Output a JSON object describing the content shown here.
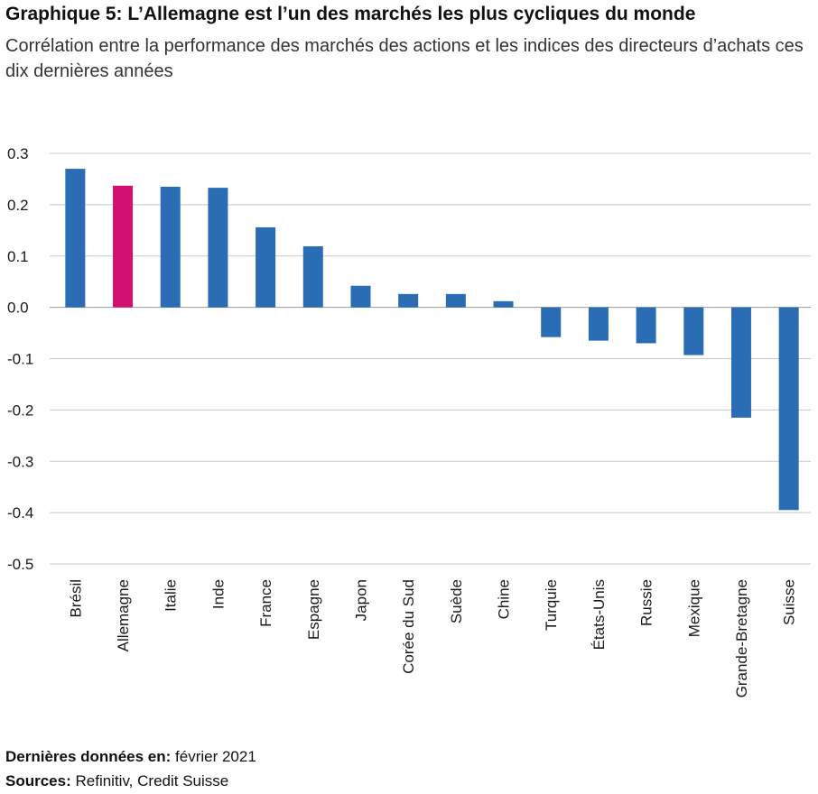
{
  "header": {
    "title": "Graphique 5: L’Allemagne est l’un des marchés les plus cycliques du monde",
    "subtitle": "Corrélation entre la performance des marchés des actions et les indices des directeurs d’achats ces dix dernières années"
  },
  "footer": {
    "last_data_label": "Dernières données en: ",
    "last_data_value": "février 2021",
    "sources_label": "Sources: ",
    "sources_value": "Refinitiv, Credit Suisse"
  },
  "chart_data": {
    "type": "bar",
    "categories": [
      "Brésil",
      "Allemagne",
      "Italie",
      "Inde",
      "France",
      "Espagne",
      "Japon",
      "Corée du Sud",
      "Suède",
      "Chine",
      "Turquie",
      "États-Unis",
      "Russie",
      "Mexique",
      "Grande-Bretagne",
      "Suisse"
    ],
    "values": [
      0.27,
      0.237,
      0.235,
      0.233,
      0.156,
      0.119,
      0.042,
      0.026,
      0.026,
      0.012,
      -0.058,
      -0.065,
      -0.07,
      -0.093,
      -0.215,
      -0.395
    ],
    "colors": [
      "#2a6db5",
      "#d40f72",
      "#2a6db5",
      "#2a6db5",
      "#2a6db5",
      "#2a6db5",
      "#2a6db5",
      "#2a6db5",
      "#2a6db5",
      "#2a6db5",
      "#2a6db5",
      "#2a6db5",
      "#2a6db5",
      "#2a6db5",
      "#2a6db5",
      "#2a6db5"
    ],
    "highlight_color": "#d40f72",
    "bar_color": "#2a6db5",
    "ylim": [
      -0.5,
      0.3
    ],
    "yticks": [
      0.3,
      0.2,
      0.1,
      0.0,
      -0.1,
      -0.2,
      -0.3,
      -0.4,
      -0.5
    ],
    "ytick_labels": [
      "0.3",
      "0.2",
      "0.1",
      "0.0",
      "-0.1",
      "-0.2",
      "-0.3",
      "-0.4",
      "-0.5"
    ],
    "grid": true
  }
}
